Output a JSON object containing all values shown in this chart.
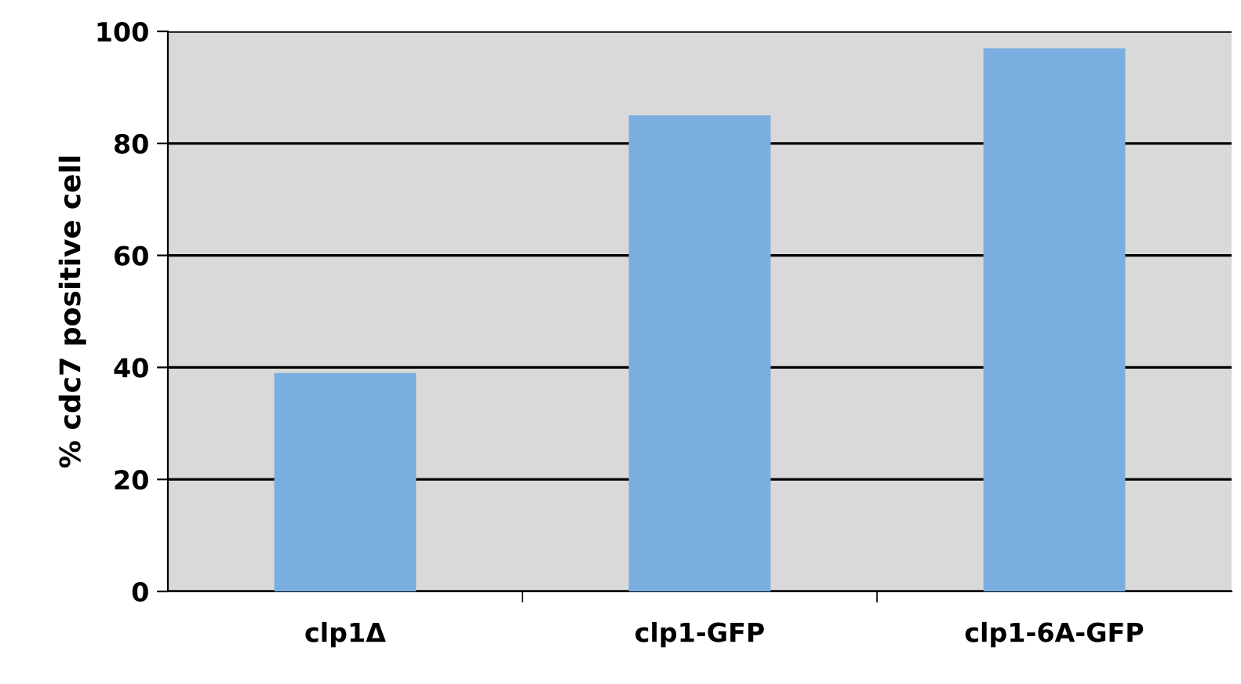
{
  "chart_data": {
    "type": "bar",
    "ylabel": "% cdc7 positive cell",
    "categories": [
      "clp1Δ",
      "clp1-GFP",
      "clp1-6A-GFP"
    ],
    "values": [
      39,
      85,
      97
    ],
    "color": "#7aaee0",
    "ylim": [
      0,
      100
    ],
    "yticks": [
      0,
      20,
      40,
      60,
      80,
      100
    ],
    "grid": "y"
  }
}
